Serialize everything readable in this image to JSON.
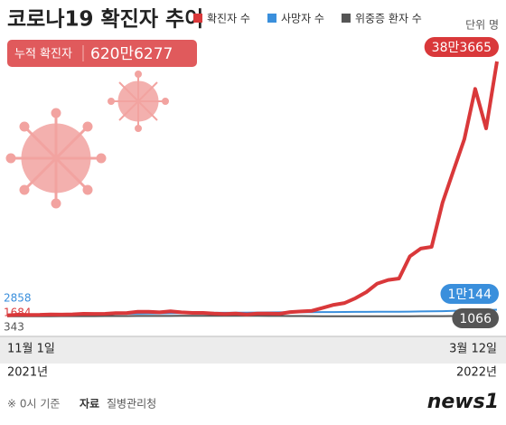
{
  "chart_data": {
    "type": "line",
    "title": "코로나19 확진자 추이",
    "cumulative_label": "누적 확진자",
    "cumulative_value": "620만6277",
    "unit_label": "단위 명",
    "categories": [
      "11월 1일",
      null,
      null,
      null,
      null,
      null,
      null,
      null,
      null,
      null,
      null,
      null,
      null,
      null,
      null,
      null,
      null,
      null,
      null,
      null,
      null,
      null,
      null,
      null,
      null,
      null,
      null,
      null,
      null,
      null,
      null,
      null,
      null,
      null,
      null,
      null,
      null,
      null,
      null,
      null,
      null,
      null,
      null,
      null,
      null,
      "3월 12일"
    ],
    "start_year": "2021년",
    "end_year": "2022년",
    "ylim": [
      0,
      400000
    ],
    "series": [
      {
        "name": "확진자 수",
        "color": "#d9383a",
        "values": [
          1684,
          2667,
          2425,
          2520,
          3187,
          2827,
          3292,
          4116,
          3938,
          4068,
          5123,
          5352,
          7175,
          7022,
          6236,
          7848,
          6233,
          5419,
          5409,
          4416,
          3865,
          4443,
          3125,
          4388,
          4542,
          4072,
          6603,
          7630,
          8571,
          13012,
          17532,
          20270,
          27443,
          36719,
          49567,
          54941,
          57177,
          90443,
          102211,
          104829,
          171452,
          219241,
          266853,
          342446,
          282987,
          383665
        ],
        "value_labels": [
          "1684",
          null,
          null,
          null,
          null,
          null,
          null,
          null,
          null,
          null,
          null,
          null,
          null,
          null,
          null,
          null,
          null,
          null,
          null,
          null,
          null,
          null,
          null,
          null,
          null,
          null,
          null,
          null,
          null,
          null,
          null,
          null,
          null,
          null,
          null,
          null,
          null,
          null,
          null,
          null,
          null,
          null,
          null,
          null,
          null,
          "38만3665"
        ]
      },
      {
        "name": "사망자 수",
        "color": "#3a8fdc",
        "values": [
          2858,
          2968,
          3078,
          3187,
          3298,
          3401,
          3505,
          3624,
          3739,
          3893,
          4020,
          4130,
          4253,
          4456,
          4644,
          4830,
          5015,
          5245,
          5382,
          5563,
          5625,
          5781,
          5838,
          6035,
          6166,
          6280,
          6378,
          6452,
          6540,
          6620,
          6688,
          6772,
          6873,
          6963,
          7045,
          7162,
          7238,
          7405,
          7607,
          7783,
          8058,
          8394,
          8796,
          9096,
          9646,
          10144
        ],
        "value_labels": [
          "2858",
          null,
          null,
          null,
          null,
          null,
          null,
          null,
          null,
          null,
          null,
          null,
          null,
          null,
          null,
          null,
          null,
          null,
          null,
          null,
          null,
          null,
          null,
          null,
          null,
          null,
          null,
          null,
          null,
          null,
          null,
          null,
          null,
          null,
          null,
          null,
          null,
          null,
          null,
          null,
          null,
          null,
          null,
          null,
          null,
          "1만144"
        ]
      },
      {
        "name": "위중증 환자 수",
        "color": "#555555",
        "values": [
          343,
          378,
          411,
          460,
          475,
          485,
          522,
          586,
          612,
          661,
          723,
          733,
          774,
          840,
          852,
          857,
          906,
          997,
          1063,
          1083,
          1151,
          1105,
          1044,
          1015,
          882,
          786,
          700,
          626,
          520,
          433,
          392,
          351,
          272,
          288,
          285,
          275,
          313,
          439,
          480,
          512,
          588,
          727,
          885,
          955,
          1007,
          1066
        ],
        "value_labels": [
          "343",
          null,
          null,
          null,
          null,
          null,
          null,
          null,
          null,
          null,
          null,
          null,
          null,
          null,
          null,
          null,
          null,
          null,
          null,
          null,
          null,
          null,
          null,
          null,
          null,
          null,
          null,
          null,
          null,
          null,
          null,
          null,
          null,
          null,
          null,
          null,
          null,
          null,
          null,
          null,
          null,
          null,
          null,
          null,
          null,
          "1066"
        ]
      }
    ]
  },
  "footer": {
    "note": "※ 0시 기준",
    "source_label": "자료",
    "source": "질병관리청",
    "brand": "news1"
  }
}
